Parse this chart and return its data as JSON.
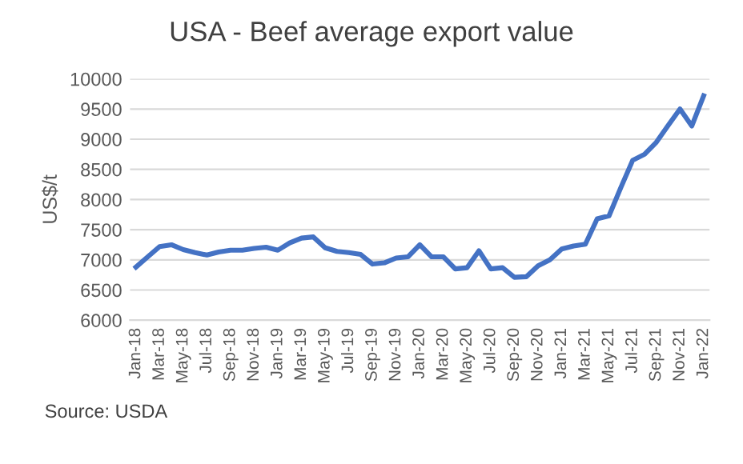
{
  "chart_data": {
    "type": "line",
    "title": "USA - Beef average export value",
    "ylabel": "US$/t",
    "categories": [
      "Jan-18",
      null,
      "Mar-18",
      null,
      "May-18",
      null,
      "Jul-18",
      null,
      "Sep-18",
      null,
      "Nov-18",
      null,
      "Jan-19",
      null,
      "Mar-19",
      null,
      "May-19",
      null,
      "Jul-19",
      null,
      "Sep-19",
      null,
      "Nov-19",
      null,
      "Jan-20",
      null,
      "Mar-20",
      null,
      "May-20",
      null,
      "Jul-20",
      null,
      "Sep-20",
      null,
      "Nov-20",
      null,
      "Jan-21",
      null,
      "Mar-21",
      null,
      "May-21",
      null,
      "Jul-21",
      null,
      "Sep-21",
      null,
      "Nov-21",
      null,
      "Jan-22"
    ],
    "series": [
      {
        "color": "#4472c4",
        "values": [
          6880,
          7050,
          7220,
          7250,
          7170,
          7120,
          7080,
          7130,
          7160,
          7160,
          7190,
          7210,
          7160,
          7280,
          7360,
          7380,
          7200,
          7140,
          7120,
          7090,
          6930,
          6950,
          7030,
          7050,
          7250,
          7050,
          7050,
          6850,
          6870,
          7150,
          6850,
          6870,
          6710,
          6720,
          6900,
          7000,
          7180,
          7230,
          7260,
          7680,
          7730,
          8200,
          8650,
          8750,
          8950,
          9230,
          9500,
          9220,
          9720
        ]
      }
    ],
    "ylim": [
      6000,
      10000
    ],
    "yticks": [
      6000,
      6500,
      7000,
      7500,
      8000,
      8500,
      9000,
      9500,
      10000
    ],
    "grid": "y",
    "legend": false,
    "marker": "none",
    "line_style": "solid",
    "annotations": [
      "Source: USDA"
    ]
  }
}
